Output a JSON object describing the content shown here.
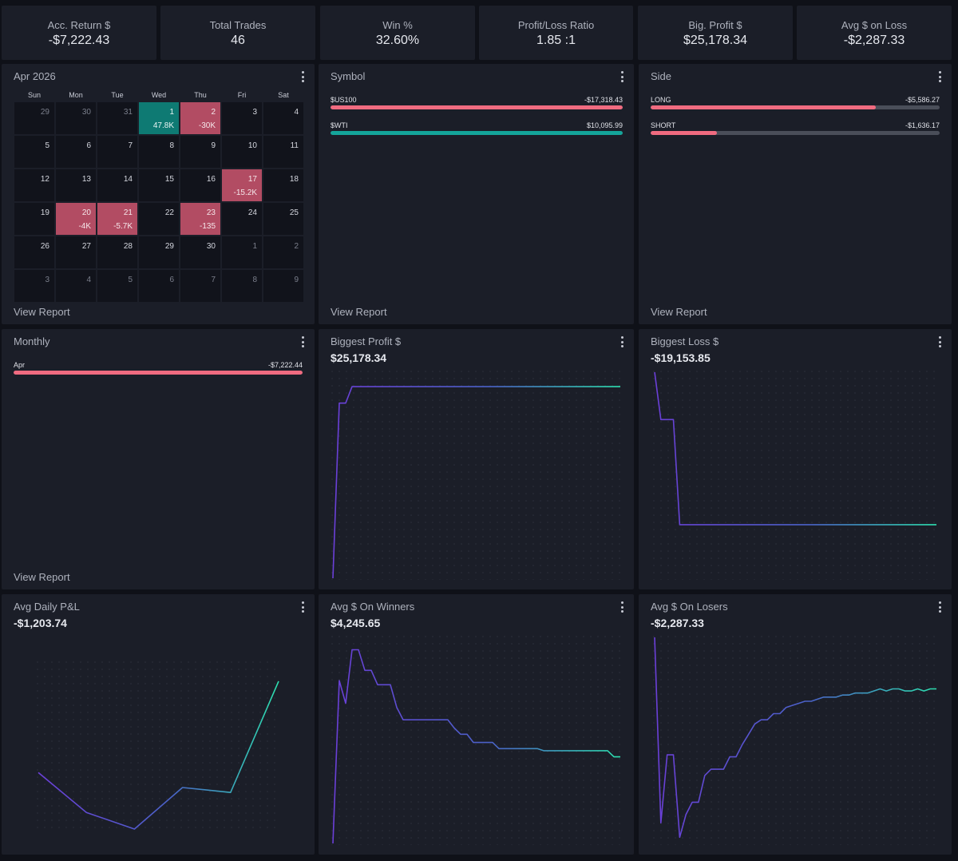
{
  "stats": [
    {
      "label": "Acc. Return $",
      "value": "-$7,222.43"
    },
    {
      "label": "Total Trades",
      "value": "46"
    },
    {
      "label": "Win %",
      "value": "32.60%"
    },
    {
      "label": "Profit/Loss Ratio",
      "value": "1.85 :1"
    },
    {
      "label": "Big. Profit $",
      "value": "$25,178.34"
    },
    {
      "label": "Avg $ on Loss",
      "value": "-$2,287.33"
    }
  ],
  "calendar": {
    "title": "Apr 2026",
    "weekdays": [
      "Sun",
      "Mon",
      "Tue",
      "Wed",
      "Thu",
      "Fri",
      "Sat"
    ],
    "days": [
      {
        "d": "29",
        "other": true
      },
      {
        "d": "30",
        "other": true
      },
      {
        "d": "31",
        "other": true
      },
      {
        "d": "1",
        "v": "47.8K",
        "s": "pos"
      },
      {
        "d": "2",
        "v": "-30K",
        "s": "neg"
      },
      {
        "d": "3"
      },
      {
        "d": "4"
      },
      {
        "d": "5"
      },
      {
        "d": "6"
      },
      {
        "d": "7"
      },
      {
        "d": "8"
      },
      {
        "d": "9"
      },
      {
        "d": "10"
      },
      {
        "d": "11"
      },
      {
        "d": "12"
      },
      {
        "d": "13"
      },
      {
        "d": "14"
      },
      {
        "d": "15"
      },
      {
        "d": "16"
      },
      {
        "d": "17",
        "v": "-15.2K",
        "s": "neg"
      },
      {
        "d": "18"
      },
      {
        "d": "19"
      },
      {
        "d": "20",
        "v": "-4K",
        "s": "neg"
      },
      {
        "d": "21",
        "v": "-5.7K",
        "s": "neg"
      },
      {
        "d": "22"
      },
      {
        "d": "23",
        "v": "-135",
        "s": "neg"
      },
      {
        "d": "24"
      },
      {
        "d": "25"
      },
      {
        "d": "26"
      },
      {
        "d": "27"
      },
      {
        "d": "28"
      },
      {
        "d": "29"
      },
      {
        "d": "30"
      },
      {
        "d": "1",
        "other": true
      },
      {
        "d": "2",
        "other": true
      },
      {
        "d": "3",
        "other": true
      },
      {
        "d": "4",
        "other": true
      },
      {
        "d": "5",
        "other": true
      },
      {
        "d": "6",
        "other": true
      },
      {
        "d": "7",
        "other": true
      },
      {
        "d": "8",
        "other": true
      },
      {
        "d": "9",
        "other": true
      }
    ],
    "view_report": "View Report"
  },
  "symbol": {
    "title": "Symbol",
    "rows": [
      {
        "label": "$US100",
        "value": "-$17,318.43",
        "fraction": 1.0,
        "color": "#f06b80"
      },
      {
        "label": "$WTI",
        "value": "$10,095.99",
        "fraction": 1.0,
        "color": "#14a59a"
      }
    ],
    "view_report": "View Report"
  },
  "side": {
    "title": "Side",
    "rows": [
      {
        "label": "LONG",
        "value": "-$5,586.27",
        "fraction": 0.78,
        "color": "#f06b80"
      },
      {
        "label": "SHORT",
        "value": "-$1,636.17",
        "fraction": 0.23,
        "color": "#f06b80"
      }
    ],
    "view_report": "View Report"
  },
  "monthly": {
    "title": "Monthly",
    "rows": [
      {
        "label": "Apr",
        "value": "-$7,222.44",
        "fraction": 1.0,
        "color": "#f06b80"
      }
    ],
    "view_report": "View Report"
  },
  "biggest_profit": {
    "title": "Biggest Profit $",
    "value": "$25,178.34",
    "chart_data": {
      "type": "line",
      "values": [
        0,
        0.85,
        0.85,
        0.93,
        0.93,
        0.93,
        0.93,
        0.93,
        0.93,
        0.93,
        0.93,
        0.93,
        0.93,
        0.93,
        0.93,
        0.93,
        0.93,
        0.93,
        0.93,
        0.93,
        0.93,
        0.93,
        0.93,
        0.93,
        0.93,
        0.93,
        0.93,
        0.93,
        0.93,
        0.93,
        0.93,
        0.93,
        0.93,
        0.93,
        0.93,
        0.93,
        0.93,
        0.93,
        0.93,
        0.93,
        0.93,
        0.93,
        0.93,
        0.93,
        0.93,
        0.93
      ],
      "ylim": [
        0,
        1
      ]
    }
  },
  "biggest_loss": {
    "title": "Biggest Loss $",
    "value": "-$19,153.85",
    "chart_data": {
      "type": "line",
      "values": [
        1,
        0.77,
        0.77,
        0.77,
        0.26,
        0.26,
        0.26,
        0.26,
        0.26,
        0.26,
        0.26,
        0.26,
        0.26,
        0.26,
        0.26,
        0.26,
        0.26,
        0.26,
        0.26,
        0.26,
        0.26,
        0.26,
        0.26,
        0.26,
        0.26,
        0.26,
        0.26,
        0.26,
        0.26,
        0.26,
        0.26,
        0.26,
        0.26,
        0.26,
        0.26,
        0.26,
        0.26,
        0.26,
        0.26,
        0.26,
        0.26,
        0.26,
        0.26,
        0.26,
        0.26,
        0.26
      ],
      "ylim": [
        0,
        1
      ]
    }
  },
  "avg_daily": {
    "title": "Avg Daily P&L",
    "value": "-$1,203.74",
    "chart_data": {
      "type": "line",
      "values": [
        0.34,
        0.1,
        0.0,
        0.25,
        0.22,
        0.89
      ],
      "ylim": [
        0,
        1
      ]
    }
  },
  "avg_winners": {
    "title": "Avg $ On Winners",
    "value": "$4,245.65",
    "chart_data": {
      "type": "line",
      "values": [
        0,
        0.79,
        0.68,
        0.94,
        0.94,
        0.84,
        0.84,
        0.77,
        0.77,
        0.77,
        0.66,
        0.6,
        0.6,
        0.6,
        0.6,
        0.6,
        0.6,
        0.6,
        0.6,
        0.56,
        0.53,
        0.53,
        0.49,
        0.49,
        0.49,
        0.49,
        0.46,
        0.46,
        0.46,
        0.46,
        0.46,
        0.46,
        0.46,
        0.45,
        0.45,
        0.45,
        0.45,
        0.45,
        0.45,
        0.45,
        0.45,
        0.45,
        0.45,
        0.45,
        0.42,
        0.42
      ],
      "ylim": [
        0,
        1
      ]
    }
  },
  "avg_losers": {
    "title": "Avg $ On Losers",
    "value": "-$2,287.33",
    "chart_data": {
      "type": "line",
      "values": [
        1,
        0.1,
        0.43,
        0.43,
        0.03,
        0.14,
        0.2,
        0.2,
        0.33,
        0.36,
        0.36,
        0.36,
        0.42,
        0.42,
        0.48,
        0.53,
        0.58,
        0.6,
        0.6,
        0.63,
        0.63,
        0.66,
        0.67,
        0.68,
        0.69,
        0.69,
        0.7,
        0.71,
        0.71,
        0.71,
        0.72,
        0.72,
        0.73,
        0.73,
        0.73,
        0.74,
        0.75,
        0.74,
        0.75,
        0.75,
        0.74,
        0.74,
        0.75,
        0.74,
        0.75,
        0.75
      ],
      "ylim": [
        0,
        1
      ]
    }
  }
}
